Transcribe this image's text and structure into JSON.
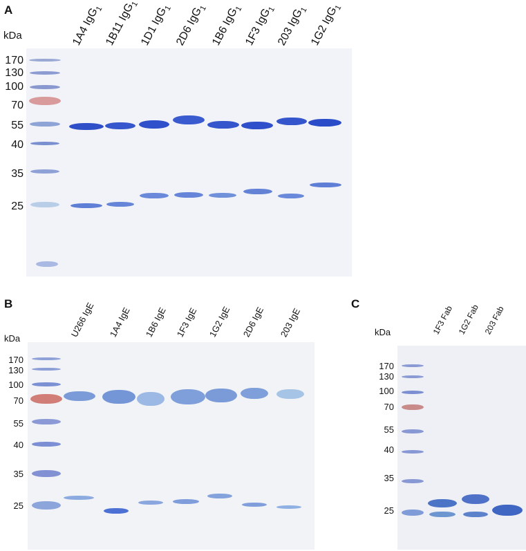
{
  "panels": {
    "A": {
      "letter": "A",
      "unit": "kDa",
      "markers": [
        "170",
        "130",
        "100",
        "70",
        "55",
        "40",
        "35",
        "25"
      ],
      "lanes": [
        {
          "name": "1A4 IgG",
          "sub": "1"
        },
        {
          "name": "1B11 IgG",
          "sub": "1"
        },
        {
          "name": "1D1 IgG",
          "sub": "1"
        },
        {
          "name": "2D6 IgG",
          "sub": "1"
        },
        {
          "name": "1B6 IgG",
          "sub": "1"
        },
        {
          "name": "1F3 IgG",
          "sub": "1"
        },
        {
          "name": "203 IgG",
          "sub": "1"
        },
        {
          "name": "1G2 IgG",
          "sub": "1"
        }
      ]
    },
    "B": {
      "letter": "B",
      "unit": "kDa",
      "markers": [
        "170",
        "130",
        "100",
        "70",
        "55",
        "40",
        "35",
        "25"
      ],
      "lanes": [
        "U266 IgE",
        "1A4 IgE",
        "1B6 IgE",
        "1F3 IgE",
        "1G2 IgE",
        "2D6 IgE",
        "203 IgE"
      ]
    },
    "C": {
      "letter": "C",
      "unit": "kDa",
      "markers": [
        "170",
        "130",
        "100",
        "70",
        "55",
        "40",
        "35",
        "25"
      ],
      "lanes": [
        "1F3 Fab",
        "1G2 Fab",
        "203 Fab"
      ]
    }
  },
  "colors": {
    "band_blue": "#2f4fc8",
    "band_light": "#7f9ed8",
    "marker_red": "#c98a8a",
    "gel_bg": "#f2f3f8"
  }
}
